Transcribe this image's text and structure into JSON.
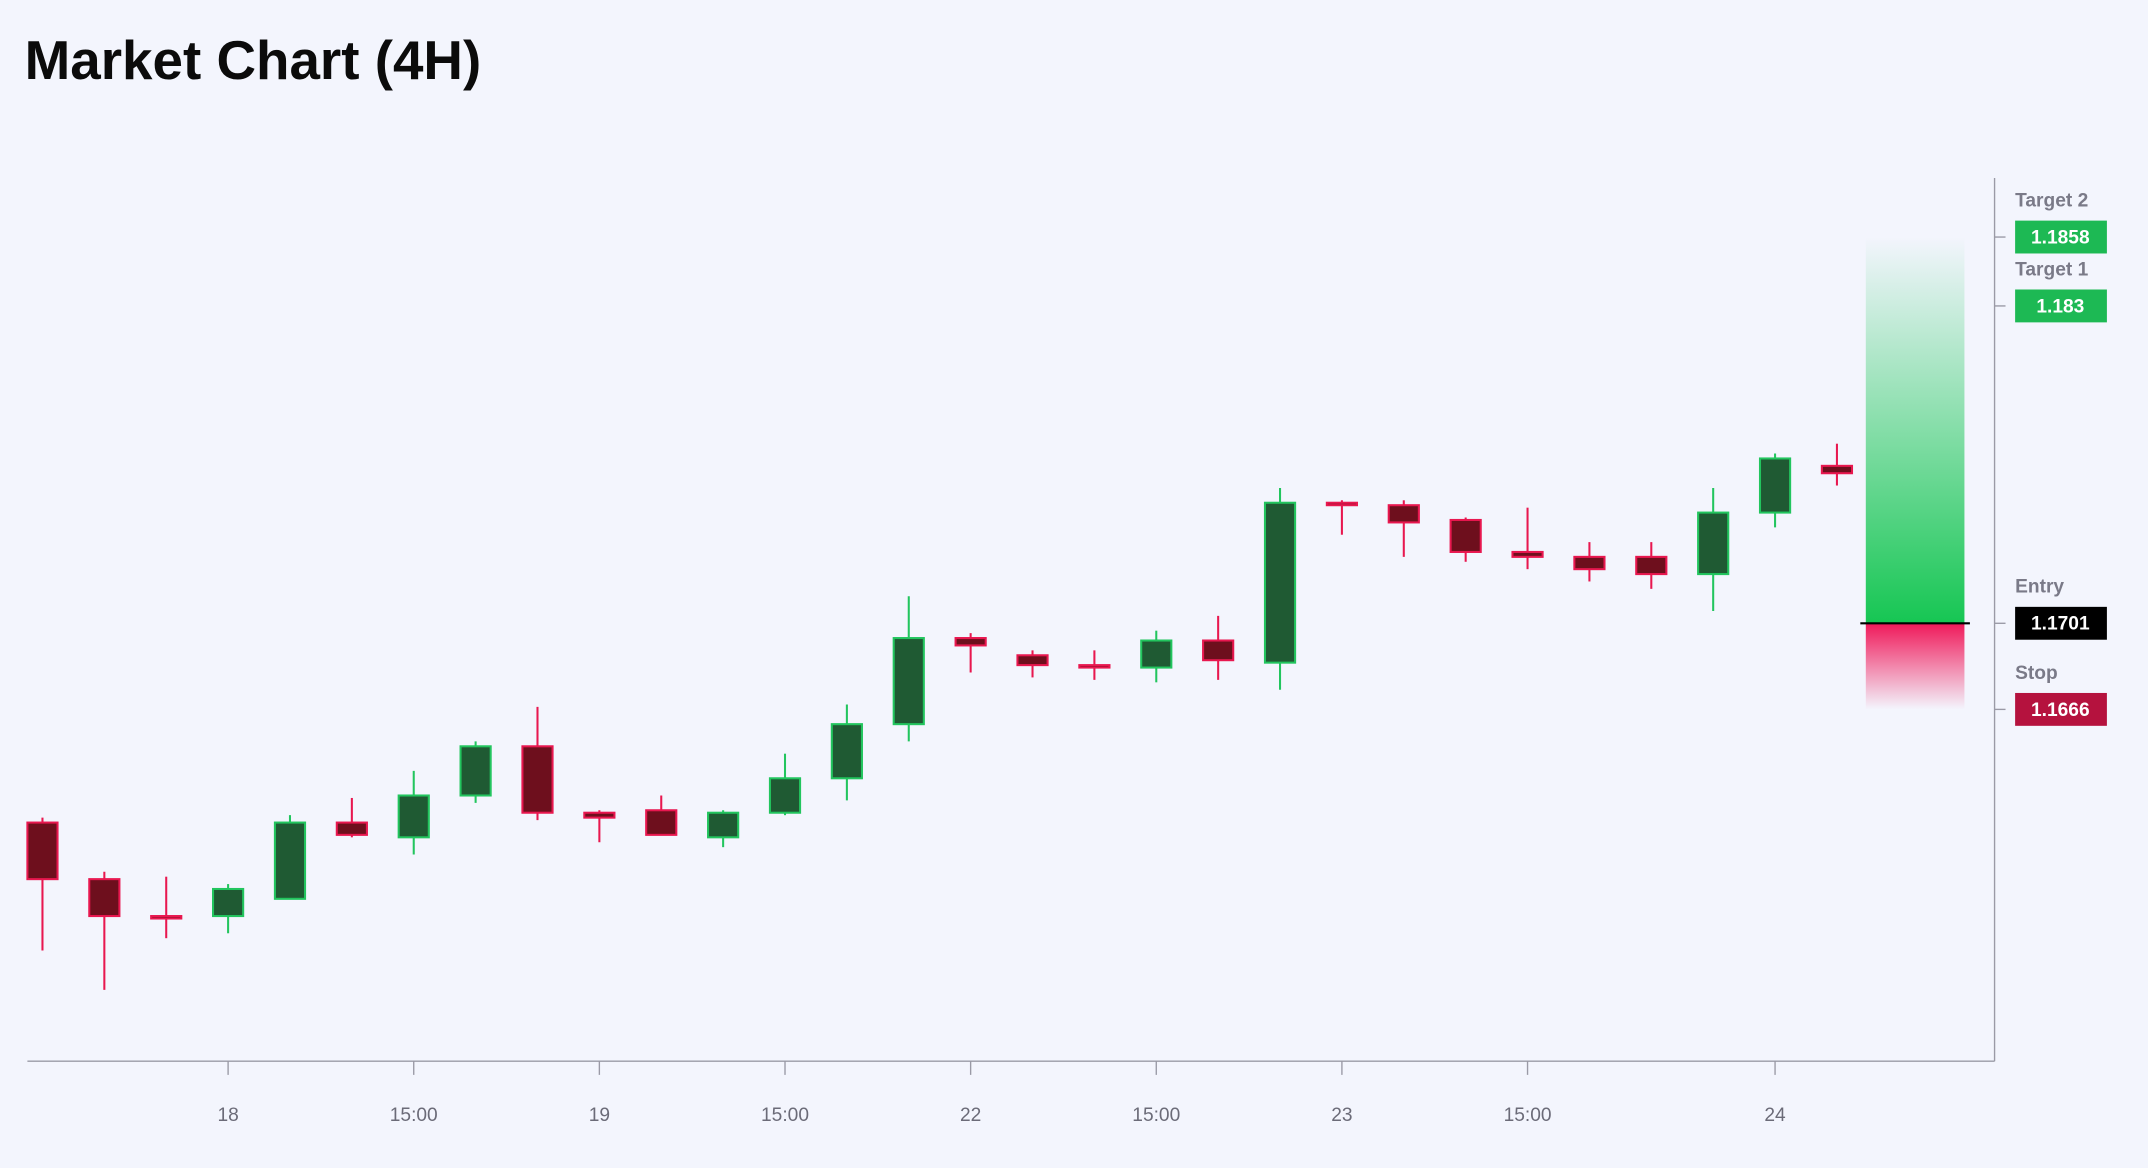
{
  "chart_data": {
    "type": "candlestick",
    "title": "Market Chart (4H)",
    "categories": [
      null,
      null,
      null,
      "18",
      null,
      null,
      "15:00",
      null,
      null,
      "19",
      null,
      null,
      "15:00",
      null,
      null,
      "22",
      null,
      null,
      "15:00",
      null,
      null,
      "23",
      null,
      null,
      "15:00",
      null,
      null,
      null,
      "24",
      null
    ],
    "open": [
      1.162,
      1.1597,
      1.1582,
      1.1582,
      1.1589,
      1.162,
      1.1614,
      1.1631,
      1.1651,
      1.1624,
      1.1625,
      1.1614,
      1.1624,
      1.1638,
      1.166,
      1.1695,
      1.1688,
      1.1684,
      1.1683,
      1.1694,
      1.1685,
      1.175,
      1.1749,
      1.1743,
      1.173,
      1.1728,
      1.1728,
      1.1721,
      1.1746,
      1.1765
    ],
    "high": [
      1.1622,
      1.16,
      1.1598,
      1.1595,
      1.1623,
      1.163,
      1.1641,
      1.1653,
      1.1667,
      1.1625,
      1.1631,
      1.1625,
      1.1648,
      1.1668,
      1.1712,
      1.1697,
      1.169,
      1.169,
      1.1698,
      1.1704,
      1.1756,
      1.1751,
      1.1751,
      1.1744,
      1.1748,
      1.1734,
      1.1734,
      1.1756,
      1.177,
      1.1774
    ],
    "low": [
      1.1568,
      1.1552,
      1.1573,
      1.1575,
      1.1589,
      1.1614,
      1.1607,
      1.1628,
      1.1621,
      1.1612,
      1.1615,
      1.161,
      1.1623,
      1.1629,
      1.1653,
      1.1681,
      1.1679,
      1.1678,
      1.1677,
      1.1678,
      1.1674,
      1.1737,
      1.1728,
      1.1726,
      1.1723,
      1.1718,
      1.1715,
      1.1706,
      1.174,
      1.1757
    ],
    "close": [
      1.1597,
      1.1582,
      1.1581,
      1.1593,
      1.162,
      1.1615,
      1.1631,
      1.1651,
      1.1624,
      1.1622,
      1.1615,
      1.1624,
      1.1638,
      1.166,
      1.1695,
      1.1692,
      1.1684,
      1.1683,
      1.1694,
      1.1686,
      1.175,
      1.1749,
      1.1742,
      1.173,
      1.1728,
      1.1723,
      1.1721,
      1.1746,
      1.1768,
      1.1762
    ],
    "up_color": "#22c55e",
    "up_fill": "#1f5a33",
    "down_color": "#e8174f",
    "down_fill": "#6e0f1d",
    "ylim": [
      1.1523,
      1.1882
    ],
    "levels": [
      {
        "name": "Target 2",
        "value": 1.1858,
        "color": "#1db954"
      },
      {
        "name": "Target 1",
        "value": 1.183,
        "color": "#1db954"
      },
      {
        "name": "Entry",
        "value": 1.1701,
        "color": "#000000"
      },
      {
        "name": "Stop",
        "value": 1.1666,
        "color": "#b5123e"
      }
    ]
  }
}
